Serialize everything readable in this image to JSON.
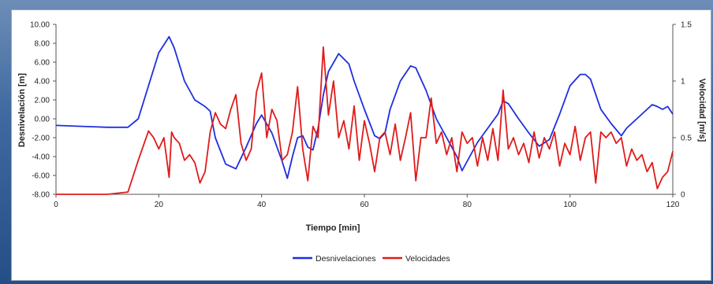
{
  "chart_data": {
    "type": "line",
    "xlabel": "Tiempo [min]",
    "ylabel": "Desnivelación [m]",
    "y2label": "Velocidad [m/s]",
    "xlim": [
      0,
      120
    ],
    "ylim": [
      -8,
      10
    ],
    "y2lim": [
      0,
      1.5
    ],
    "x_ticks": [
      "0",
      "20",
      "40",
      "60",
      "80",
      "100",
      "120"
    ],
    "y_ticks": [
      "10.00",
      "8.00",
      "6.00",
      "4.00",
      "2.00",
      "0.00",
      "-2.00",
      "-4.00",
      "-6.00",
      "-8.00"
    ],
    "y2_ticks": [
      "1.5",
      "1",
      "0.5",
      "0"
    ],
    "grid": false,
    "legend": "bottom",
    "series": [
      {
        "name": "Desnivelaciones",
        "color": "#1f2ee0",
        "axis": "left",
        "x": [
          0,
          5,
          10,
          14,
          16,
          18,
          20,
          22,
          23,
          25,
          27,
          29,
          30,
          31,
          33,
          35,
          37,
          39,
          40,
          42,
          44,
          45,
          46,
          47,
          48,
          49,
          50,
          51,
          52,
          53,
          55,
          57,
          58,
          60,
          62,
          63,
          64,
          65,
          67,
          69,
          70,
          72,
          74,
          76,
          78,
          79,
          80,
          82,
          84,
          86,
          87,
          88,
          90,
          92,
          94,
          96,
          98,
          100,
          102,
          103,
          104,
          106,
          108,
          110,
          111,
          113,
          115,
          116,
          117,
          118,
          119,
          120
        ],
        "values": [
          -0.7,
          -0.8,
          -0.9,
          -0.9,
          0.0,
          3.5,
          7.0,
          8.7,
          7.5,
          4.0,
          2.0,
          1.3,
          0.8,
          -2.0,
          -4.8,
          -5.3,
          -3.0,
          -0.5,
          0.4,
          -1.5,
          -4.5,
          -6.3,
          -4.0,
          -2.0,
          -1.8,
          -3.0,
          -3.3,
          -1.0,
          2.5,
          5.0,
          6.9,
          5.8,
          4.0,
          1.0,
          -1.8,
          -2.1,
          -1.5,
          1.0,
          4.0,
          5.6,
          5.4,
          3.0,
          0.0,
          -2.0,
          -4.0,
          -5.5,
          -4.5,
          -2.5,
          -1.0,
          0.5,
          1.9,
          1.6,
          0.0,
          -1.5,
          -2.9,
          -2.2,
          0.5,
          3.5,
          4.7,
          4.7,
          4.2,
          1.0,
          -0.5,
          -1.8,
          -1.0,
          0.0,
          1.0,
          1.5,
          1.3,
          1.0,
          1.3,
          0.5
        ]
      },
      {
        "name": "Velocidades",
        "color": "#e01b1b",
        "axis": "right",
        "x": [
          0,
          5,
          10,
          14,
          16,
          18,
          19,
          20,
          21,
          22,
          22.5,
          23,
          24,
          25,
          26,
          27,
          28,
          29,
          30,
          31,
          32,
          33,
          34,
          35,
          36,
          37,
          38,
          39,
          40,
          41,
          42,
          43,
          44,
          45,
          46,
          47,
          48,
          49,
          50,
          51,
          52,
          53,
          54,
          55,
          56,
          57,
          58,
          59,
          60,
          61,
          62,
          63,
          64,
          65,
          66,
          67,
          68,
          69,
          70,
          71,
          72,
          73,
          74,
          75,
          76,
          77,
          78,
          79,
          80,
          81,
          82,
          83,
          84,
          85,
          86,
          87,
          88,
          89,
          90,
          91,
          92,
          93,
          94,
          95,
          96,
          97,
          98,
          99,
          100,
          101,
          102,
          103,
          104,
          105,
          106,
          107,
          108,
          109,
          110,
          111,
          112,
          113,
          114,
          115,
          116,
          117,
          118,
          119,
          120
        ],
        "values": [
          0.0,
          0.0,
          0.0,
          0.02,
          0.3,
          0.56,
          0.5,
          0.4,
          0.5,
          0.15,
          0.55,
          0.5,
          0.45,
          0.3,
          0.35,
          0.28,
          0.1,
          0.2,
          0.55,
          0.72,
          0.62,
          0.58,
          0.75,
          0.88,
          0.45,
          0.3,
          0.4,
          0.9,
          1.07,
          0.5,
          0.75,
          0.65,
          0.3,
          0.35,
          0.55,
          0.95,
          0.4,
          0.12,
          0.6,
          0.5,
          1.3,
          0.7,
          1.0,
          0.5,
          0.65,
          0.4,
          0.78,
          0.3,
          0.65,
          0.45,
          0.2,
          0.5,
          0.55,
          0.35,
          0.62,
          0.3,
          0.5,
          0.72,
          0.12,
          0.5,
          0.5,
          0.85,
          0.45,
          0.55,
          0.35,
          0.5,
          0.2,
          0.55,
          0.45,
          0.5,
          0.25,
          0.5,
          0.3,
          0.58,
          0.3,
          0.92,
          0.4,
          0.5,
          0.35,
          0.45,
          0.28,
          0.55,
          0.32,
          0.5,
          0.4,
          0.55,
          0.25,
          0.45,
          0.35,
          0.6,
          0.3,
          0.5,
          0.55,
          0.1,
          0.55,
          0.5,
          0.55,
          0.45,
          0.5,
          0.25,
          0.4,
          0.3,
          0.35,
          0.2,
          0.28,
          0.05,
          0.15,
          0.2,
          0.38
        ]
      }
    ]
  }
}
